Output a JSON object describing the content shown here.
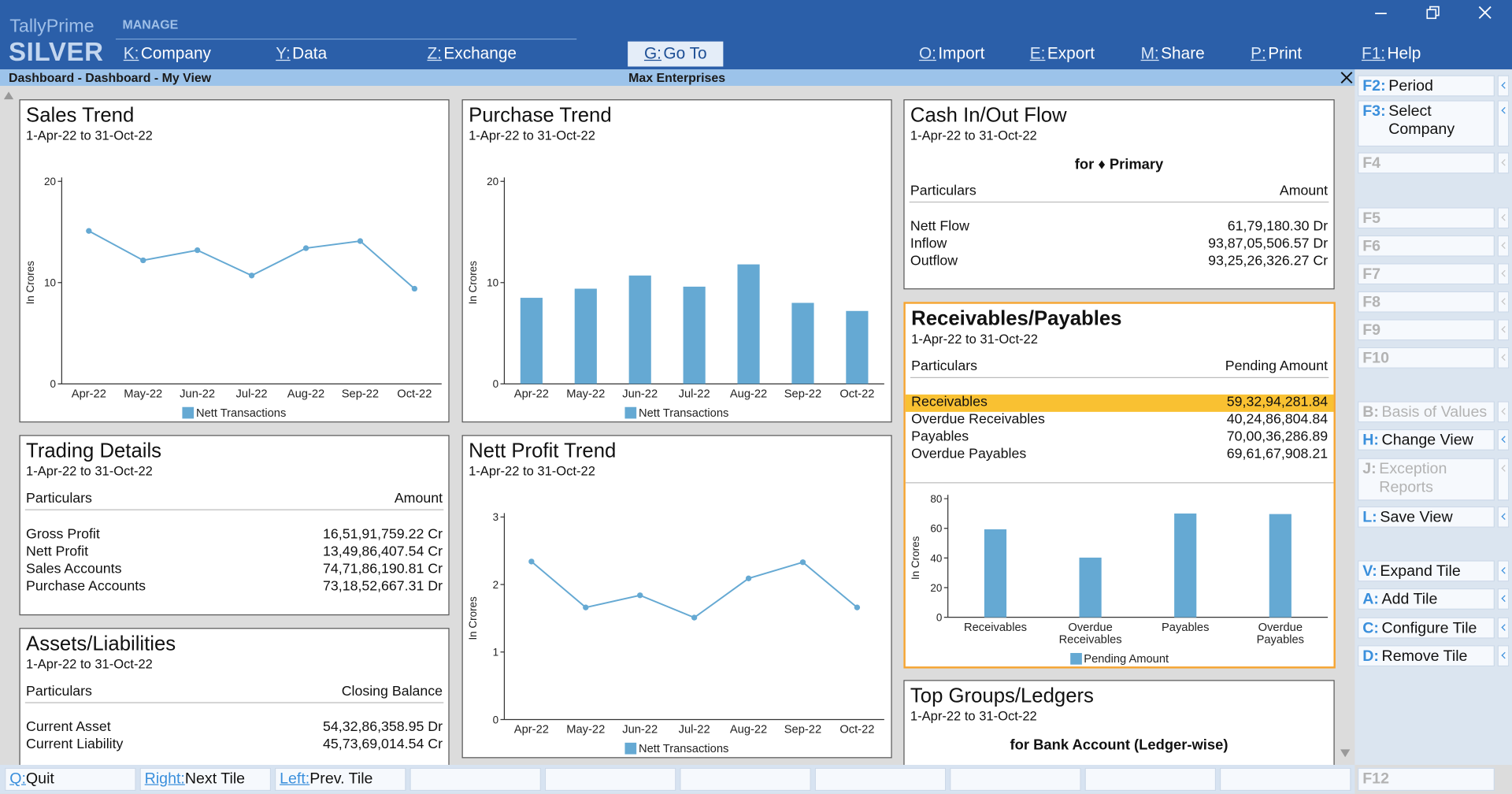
{
  "header": {
    "product": "TallyPrime",
    "edition": "SILVER",
    "menu_group": "MANAGE",
    "menu": [
      {
        "key": "K:",
        "label": "Company"
      },
      {
        "key": "Y:",
        "label": "Data"
      },
      {
        "key": "Z:",
        "label": "Exchange"
      },
      {
        "key": "G:",
        "label": "Go To",
        "highlighted": true
      },
      {
        "key": "O:",
        "label": "Import"
      },
      {
        "key": "E:",
        "label": "Export"
      },
      {
        "key": "M:",
        "label": "Share"
      },
      {
        "key": "P:",
        "label": "Print"
      },
      {
        "key": "F1:",
        "label": "Help"
      }
    ]
  },
  "breadcrumb": "Dashboard - Dashboard - My View",
  "company": "Max Enterprises",
  "tiles": [
    {
      "title": "Sales Trend",
      "period": "1-Apr-22 to 31-Oct-22",
      "chart": {
        "type": "line",
        "y_label": "In Crores",
        "categories": [
          "Apr-22",
          "May-22",
          "Jun-22",
          "Jul-22",
          "Aug-22",
          "Sep-22",
          "Oct-22"
        ],
        "series": [
          {
            "name": "Nett Transactions",
            "color": "#65a9d3",
            "values": [
              15.1,
              12.2,
              13.2,
              10.7,
              13.4,
              14.1,
              9.4
            ]
          }
        ],
        "ylim": [
          0,
          20
        ],
        "yticks": [
          0,
          10,
          20
        ]
      }
    },
    {
      "title": "Purchase Trend",
      "period": "1-Apr-22 to 31-Oct-22",
      "chart": {
        "type": "bar",
        "y_label": "In Crores",
        "categories": [
          "Apr-22",
          "May-22",
          "Jun-22",
          "Jul-22",
          "Aug-22",
          "Sep-22",
          "Oct-22"
        ],
        "series": [
          {
            "name": "Nett Transactions",
            "color": "#65a9d3",
            "values": [
              8.5,
              9.4,
              10.7,
              9.6,
              11.8,
              8.0,
              7.2
            ]
          }
        ],
        "ylim": [
          0,
          20
        ],
        "yticks": [
          0,
          10,
          20
        ]
      }
    },
    {
      "title": "Cash In/Out Flow",
      "period": "1-Apr-22 to 31-Oct-22",
      "subtitle": "for ♦ Primary",
      "table": {
        "columns": [
          "Particulars",
          "Amount"
        ],
        "rows": [
          [
            "Nett Flow",
            "61,79,180.30 Dr"
          ],
          [
            "Inflow",
            "93,87,05,506.57 Dr"
          ],
          [
            "Outflow",
            "93,25,26,326.27 Cr"
          ]
        ]
      }
    },
    {
      "title": "Trading Details",
      "period": "1-Apr-22 to 31-Oct-22",
      "table": {
        "columns": [
          "Particulars",
          "Amount"
        ],
        "rows": [
          [
            "Gross Profit",
            "16,51,91,759.22 Cr"
          ],
          [
            "Nett Profit",
            "13,49,86,407.54 Cr"
          ],
          [
            "Sales Accounts",
            "74,71,86,190.81 Cr"
          ],
          [
            "Purchase Accounts",
            "73,18,52,667.31 Dr"
          ]
        ]
      }
    },
    {
      "title": "Nett Profit Trend",
      "period": "1-Apr-22 to 31-Oct-22",
      "chart": {
        "type": "line",
        "y_label": "In Crores",
        "categories": [
          "Apr-22",
          "May-22",
          "Jun-22",
          "Jul-22",
          "Aug-22",
          "Sep-22",
          "Oct-22"
        ],
        "series": [
          {
            "name": "Nett Transactions",
            "color": "#65a9d3",
            "values": [
              2.34,
              1.66,
              1.84,
              1.51,
              2.09,
              2.33,
              1.66
            ]
          }
        ],
        "ylim": [
          0,
          3
        ],
        "yticks": [
          0,
          1,
          2,
          3
        ]
      }
    },
    {
      "title": "Receivables/Payables",
      "period": "1-Apr-22 to 31-Oct-22",
      "selected": true,
      "table": {
        "columns": [
          "Particulars",
          "Pending Amount"
        ],
        "rows": [
          [
            "Receivables",
            "59,32,94,281.84"
          ],
          [
            "Overdue Receivables",
            "40,24,86,804.84"
          ],
          [
            "Payables",
            "70,00,36,286.89"
          ],
          [
            "Overdue Payables",
            "69,61,67,908.21"
          ]
        ],
        "highlight_row": 0
      },
      "chart": {
        "type": "bar",
        "y_label": "In Crores",
        "categories": [
          "Receivables",
          "Overdue Receivables",
          "Payables",
          "Overdue Payables"
        ],
        "series": [
          {
            "name": "Pending Amount",
            "color": "#65a9d3",
            "values": [
              59.33,
              40.25,
              70.0,
              69.62
            ]
          }
        ],
        "ylim": [
          0,
          80
        ],
        "yticks": [
          0,
          20,
          40,
          60,
          80
        ]
      }
    },
    {
      "title": "Assets/Liabilities",
      "period": "1-Apr-22 to 31-Oct-22",
      "table": {
        "columns": [
          "Particulars",
          "Closing Balance"
        ],
        "rows": [
          [
            "Current Asset",
            "54,32,86,358.95 Dr"
          ],
          [
            "Current Liability",
            "45,73,69,014.54 Cr"
          ]
        ]
      }
    },
    {
      "title": "Top Groups/Ledgers",
      "period": "1-Apr-22 to 31-Oct-22",
      "subtitle": "for Bank Account (Ledger-wise)"
    }
  ],
  "right_panel": [
    {
      "key": "F2:",
      "label": "Period",
      "enabled": true
    },
    {
      "key": "F3:",
      "label": "Select Company",
      "enabled": true
    },
    {
      "key": "F4",
      "enabled": false
    },
    {
      "key": "F5",
      "enabled": false
    },
    {
      "key": "F6",
      "enabled": false
    },
    {
      "key": "F7",
      "enabled": false
    },
    {
      "key": "F8",
      "enabled": false
    },
    {
      "key": "F9",
      "enabled": false
    },
    {
      "key": "F10",
      "enabled": false
    },
    {
      "key": "B:",
      "label": "Basis of Values",
      "enabled": false
    },
    {
      "key": "H:",
      "label": "Change View",
      "enabled": true
    },
    {
      "key": "J:",
      "label": "Exception Reports",
      "enabled": false
    },
    {
      "key": "L:",
      "label": "Save View",
      "enabled": true
    },
    {
      "key": "V:",
      "label": "Expand Tile",
      "enabled": true
    },
    {
      "key": "A:",
      "label": "Add Tile",
      "enabled": true
    },
    {
      "key": "C:",
      "label": "Configure Tile",
      "enabled": true
    },
    {
      "key": "D:",
      "label": "Remove Tile",
      "enabled": true
    },
    {
      "key": "F12",
      "enabled": false
    }
  ],
  "footer": [
    {
      "key": "Q:",
      "label": "Quit"
    },
    {
      "key": "Right:",
      "label": "Next Tile"
    },
    {
      "key": "Left:",
      "label": "Prev. Tile"
    }
  ]
}
